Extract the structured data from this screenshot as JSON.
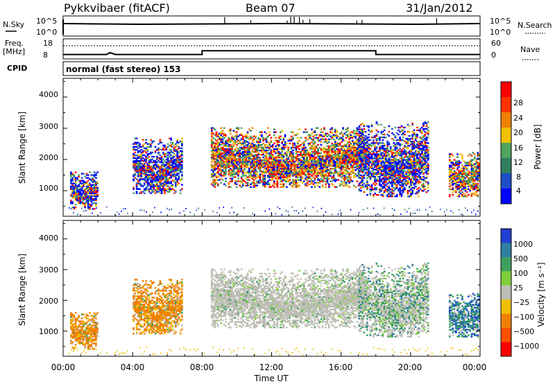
{
  "header": {
    "station": "Pykkvibaer (fitACF)",
    "beam": "Beam 07",
    "date": "31/Jan/2012"
  },
  "top_strip": {
    "nsky_label": "N.Sky",
    "nsearch_label": "N.Search",
    "left_ticks": [
      "10^5",
      "10^0"
    ],
    "right_ticks": [
      "10^5",
      "10^0"
    ],
    "freq_label_line1": "Freq.",
    "freq_label_line2": "[MHz]",
    "freq_ticks": [
      "18",
      "8"
    ],
    "nave_label": "Nave",
    "nave_ticks": [
      "60",
      "0"
    ],
    "cpid_label": "CPID",
    "cpid_text": "normal (fast stereo) 153"
  },
  "axes": {
    "ylabel": "Slant Range [km]",
    "xlabel": "Time UT",
    "y_ticks": [
      "1000",
      "2000",
      "3000",
      "4000"
    ],
    "x_ticks": [
      "00:00",
      "04:00",
      "08:00",
      "12:00",
      "16:00",
      "20:00",
      "00:00"
    ]
  },
  "colorbars": {
    "power_label": "Power [dB]",
    "power_ticks": [
      "4",
      "8",
      "12",
      "16",
      "20",
      "24",
      "28"
    ],
    "power_colors": [
      "#0000ff",
      "#1f4fc8",
      "#2f7f5f",
      "#4fa45f",
      "#f0c000",
      "#f08000",
      "#ff3300",
      "#ff0000"
    ],
    "velocity_label": "Velocity [m s⁻¹]",
    "velocity_ticks": [
      "1000",
      "500",
      "100",
      "25",
      "−25",
      "−100",
      "−500",
      "−1000"
    ],
    "velocity_colors": [
      "#1f3fd0",
      "#2f7fa0",
      "#3f9f5f",
      "#7fcf3f",
      "#bebeb6",
      "#f0c000",
      "#f08000",
      "#ff5000",
      "#ff0000"
    ]
  },
  "chart_data": {
    "type": "heatmap",
    "x_range_hours": [
      0,
      24
    ],
    "y_range_km": [
      180,
      4600
    ],
    "freq_series": [
      {
        "t": 0,
        "mhz": 10.0
      },
      {
        "t": 2.5,
        "mhz": 10.0
      },
      {
        "t": 2.7,
        "mhz": 11.0
      },
      {
        "t": 3.0,
        "mhz": 10.0
      },
      {
        "t": 8.0,
        "mhz": 10.0
      },
      {
        "t": 8.0,
        "mhz": 12.0
      },
      {
        "t": 18.0,
        "mhz": 12.0
      },
      {
        "t": 18.0,
        "mhz": 10.0
      },
      {
        "t": 24.0,
        "mhz": 10.0
      }
    ],
    "echo_regions": [
      {
        "t0": 0.4,
        "t1": 2.0,
        "r0": 400,
        "r1": 1600,
        "power": "mixed",
        "velocity": "orange"
      },
      {
        "t0": 4.0,
        "t1": 6.8,
        "r0": 900,
        "r1": 2700,
        "power": "mixed",
        "velocity": "orange"
      },
      {
        "t0": 8.5,
        "t1": 17.3,
        "r0": 1100,
        "r1": 3000,
        "power": "high",
        "velocity": "grey"
      },
      {
        "t0": 17.0,
        "t1": 21.0,
        "r0": 800,
        "r1": 3200,
        "power": "mixed",
        "velocity": "grey-green"
      },
      {
        "t0": 22.2,
        "t1": 24.0,
        "r0": 800,
        "r1": 2200,
        "power": "high",
        "velocity": "blue-green"
      }
    ]
  }
}
